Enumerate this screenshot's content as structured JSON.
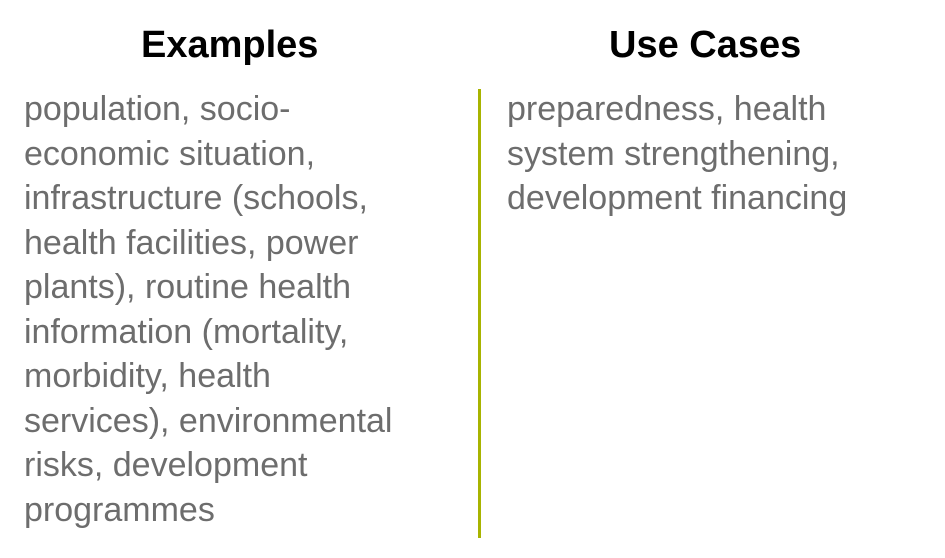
{
  "columns": {
    "examples": {
      "heading": "Examples",
      "lines": [
        "population, socio-",
        "economic situation,",
        "infrastructure (schools,",
        "health facilities, power",
        "plants), routine health",
        "information (mortality,",
        "morbidity, health",
        "services), environmental",
        "risks, development",
        "programmes"
      ]
    },
    "use_cases": {
      "heading": "Use Cases",
      "lines": [
        "preparedness, health",
        "system strengthening,",
        "development financing"
      ]
    }
  },
  "colors": {
    "heading": "#000000",
    "body_text": "#6d6d6d",
    "divider": "#a8b400"
  }
}
